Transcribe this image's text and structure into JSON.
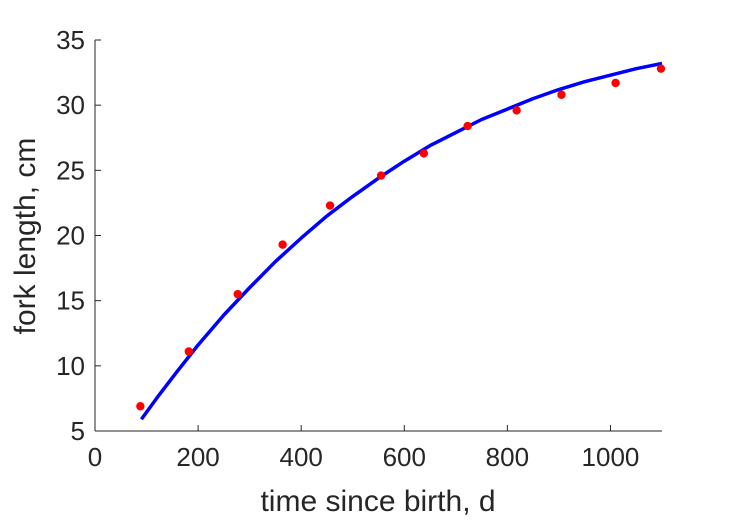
{
  "chart_data": {
    "type": "scatter",
    "title": "",
    "xlabel": "time since birth, d",
    "ylabel": "fork length, cm",
    "xlim": [
      0,
      1100
    ],
    "ylim": [
      5,
      35
    ],
    "xticks": [
      0,
      200,
      400,
      600,
      800,
      1000
    ],
    "yticks": [
      5,
      10,
      15,
      20,
      25,
      30,
      35
    ],
    "grid": false,
    "legend": "none",
    "series": [
      {
        "kind": "points",
        "color": "#ff0000",
        "x": [
          88,
          182,
          277,
          364,
          456,
          555,
          638,
          723,
          818,
          905,
          1010,
          1098
        ],
        "y": [
          6.9,
          11.1,
          15.5,
          19.3,
          22.3,
          24.6,
          26.3,
          28.4,
          29.6,
          30.8,
          31.7,
          32.8
        ]
      },
      {
        "kind": "line",
        "color": "#0000ff",
        "x": [
          90,
          125,
          160,
          200,
          250,
          300,
          350,
          400,
          450,
          500,
          550,
          600,
          650,
          700,
          750,
          800,
          850,
          900,
          950,
          1000,
          1050,
          1100
        ],
        "y": [
          5.9,
          7.8,
          9.6,
          11.6,
          13.9,
          16.0,
          18.0,
          19.8,
          21.5,
          23.0,
          24.4,
          25.7,
          26.9,
          27.9,
          28.9,
          29.7,
          30.5,
          31.2,
          31.8,
          32.3,
          32.8,
          33.2
        ]
      }
    ]
  }
}
